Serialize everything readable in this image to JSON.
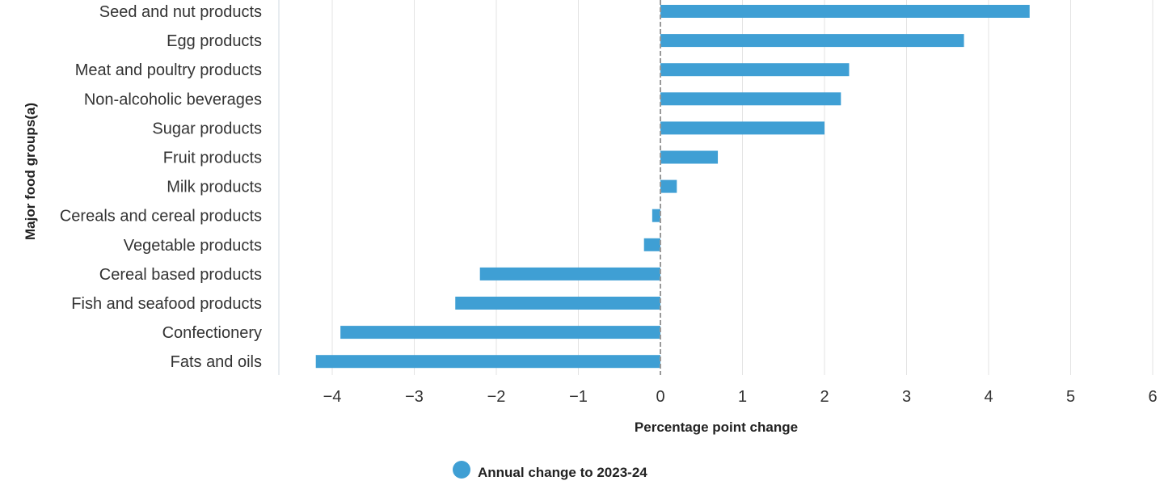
{
  "chart_data": {
    "type": "bar",
    "orientation": "horizontal",
    "categories": [
      "Seed and nut products",
      "Egg products",
      "Meat and poultry products",
      "Non-alcoholic beverages",
      "Sugar products",
      "Fruit products",
      "Milk products",
      "Cereals and cereal products",
      "Vegetable products",
      "Cereal based products",
      "Fish and seafood products",
      "Confectionery",
      "Fats and oils"
    ],
    "series": [
      {
        "name": "Annual change to 2023-24",
        "color": "#3f9fd4",
        "values": [
          4.5,
          3.7,
          2.3,
          2.2,
          2.0,
          0.7,
          0.2,
          -0.1,
          -0.2,
          -2.2,
          -2.5,
          -3.9,
          -4.2
        ]
      }
    ],
    "xlabel": "Percentage point change",
    "ylabel": "Major food groups(a)",
    "xlim": [
      -4.7,
      6
    ],
    "xticks": [
      -4,
      -3,
      -2,
      -1,
      0,
      1,
      2,
      3,
      4,
      5,
      6
    ],
    "xtick_labels": [
      "−4",
      "−3",
      "−2",
      "−1",
      "0",
      "1",
      "2",
      "3",
      "4",
      "5",
      "6"
    ],
    "grid": "vertical",
    "zero_line": "dashed",
    "legend": "bottom-center"
  }
}
